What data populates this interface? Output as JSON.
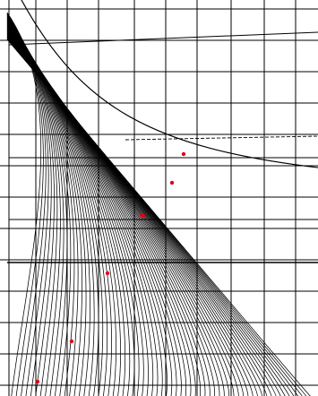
{
  "colors": {
    "background": "#ffffff",
    "grid": "#000000",
    "curves": "#000000",
    "marker": "#e0001b"
  },
  "diagram": {
    "type": "curve-family-on-grid",
    "grid": {
      "columns": 9,
      "rows": 12
    },
    "marker_count": 7
  }
}
